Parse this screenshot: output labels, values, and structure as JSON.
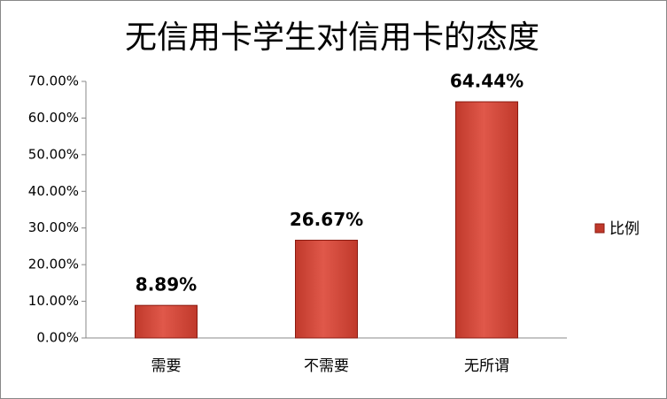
{
  "chart_data": {
    "type": "bar",
    "title": "无信用卡学生对信用卡的态度",
    "categories": [
      "需要",
      "不需要",
      "无所谓"
    ],
    "series": [
      {
        "name": "比例",
        "color": "#c0392b",
        "values": [
          8.89,
          26.67,
          64.44
        ],
        "value_labels": [
          "8.89%",
          "26.67%",
          "64.44%"
        ]
      }
    ],
    "ylim": [
      0,
      70
    ],
    "yticks": [
      {
        "value": 0,
        "label": "0.00%"
      },
      {
        "value": 10,
        "label": "10.00%"
      },
      {
        "value": 20,
        "label": "20.00%"
      },
      {
        "value": 30,
        "label": "30.00%"
      },
      {
        "value": 40,
        "label": "40.00%"
      },
      {
        "value": 50,
        "label": "50.00%"
      },
      {
        "value": 60,
        "label": "60.00%"
      },
      {
        "value": 70,
        "label": "70.00%"
      }
    ],
    "grid": false,
    "legend": "right"
  }
}
